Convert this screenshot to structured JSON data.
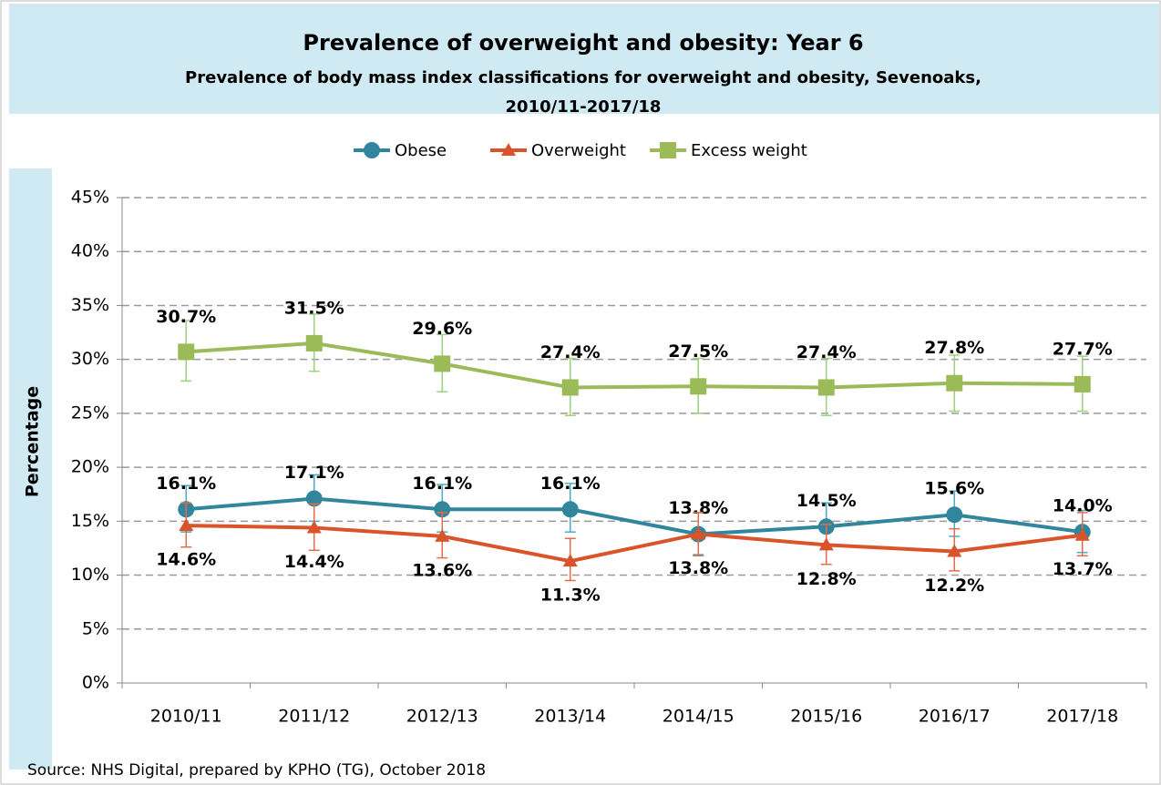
{
  "chart_data": {
    "type": "line",
    "title": "Prevalence of overweight and obesity: Year 6",
    "subtitle": "Prevalence of body mass index classifications  for overweight and obesity, Sevenoaks,",
    "subtitle2": "2010/11-2017/18",
    "y_label": "Percentage",
    "source": "Source: NHS Digital, prepared by KPHO (TG), October 2018",
    "categories": [
      "2010/11",
      "2011/12",
      "2012/13",
      "2013/14",
      "2014/15",
      "2015/16",
      "2016/17",
      "2017/18"
    ],
    "ylim": [
      0,
      45
    ],
    "yticks": [
      {
        "value": 0,
        "label": "0%"
      },
      {
        "value": 5,
        "label": "5%"
      },
      {
        "value": 10,
        "label": "10%"
      },
      {
        "value": 15,
        "label": "15%"
      },
      {
        "value": 20,
        "label": "20%"
      },
      {
        "value": 25,
        "label": "25%"
      },
      {
        "value": 30,
        "label": "30%"
      },
      {
        "value": 35,
        "label": "35%"
      },
      {
        "value": 40,
        "label": "40%"
      },
      {
        "value": 45,
        "label": "45%"
      }
    ],
    "grid": true,
    "legend": "top",
    "series": [
      {
        "name": "Obese",
        "color": "#31859c",
        "error_color": "#4bacc6",
        "marker": "circle",
        "values": [
          16.1,
          17.1,
          16.1,
          16.1,
          13.8,
          14.5,
          15.6,
          14.0
        ],
        "value_labels": [
          "16.1%",
          "17.1%",
          "16.1%",
          "16.1%",
          "13.8%",
          "14.5%",
          "15.6%",
          "14.0%"
        ],
        "lower": [
          14.0,
          15.0,
          14.0,
          14.0,
          11.9,
          12.6,
          13.6,
          12.1
        ],
        "upper": [
          18.3,
          19.3,
          18.4,
          18.5,
          15.8,
          16.7,
          17.8,
          16.0
        ]
      },
      {
        "name": "Overweight",
        "color": "#d9532b",
        "error_color": "#e46c4a",
        "marker": "triangle",
        "values": [
          14.6,
          14.4,
          13.6,
          11.3,
          13.8,
          12.8,
          12.2,
          13.7
        ],
        "value_labels": [
          "14.6%",
          "14.4%",
          "13.6%",
          "11.3%",
          "13.8%",
          "12.8%",
          "12.2%",
          "13.7%"
        ],
        "lower": [
          12.6,
          12.3,
          11.6,
          9.5,
          11.8,
          11.0,
          10.4,
          11.8
        ],
        "upper": [
          16.7,
          16.6,
          15.8,
          13.4,
          15.8,
          14.7,
          14.3,
          15.8
        ]
      },
      {
        "name": "Excess weight",
        "color": "#9bbb59",
        "error_color": "#9bd27c",
        "marker": "square",
        "values": [
          30.7,
          31.5,
          29.6,
          27.4,
          27.5,
          27.4,
          27.8,
          27.7
        ],
        "value_labels": [
          "30.7%",
          "31.5%",
          "29.6%",
          "27.4%",
          "27.5%",
          "27.4%",
          "27.8%",
          "27.7%"
        ],
        "lower": [
          28.0,
          28.9,
          27.0,
          24.8,
          25.0,
          24.8,
          25.2,
          25.2
        ],
        "upper": [
          33.6,
          34.2,
          32.3,
          30.1,
          30.1,
          30.1,
          30.4,
          30.3
        ]
      }
    ]
  }
}
